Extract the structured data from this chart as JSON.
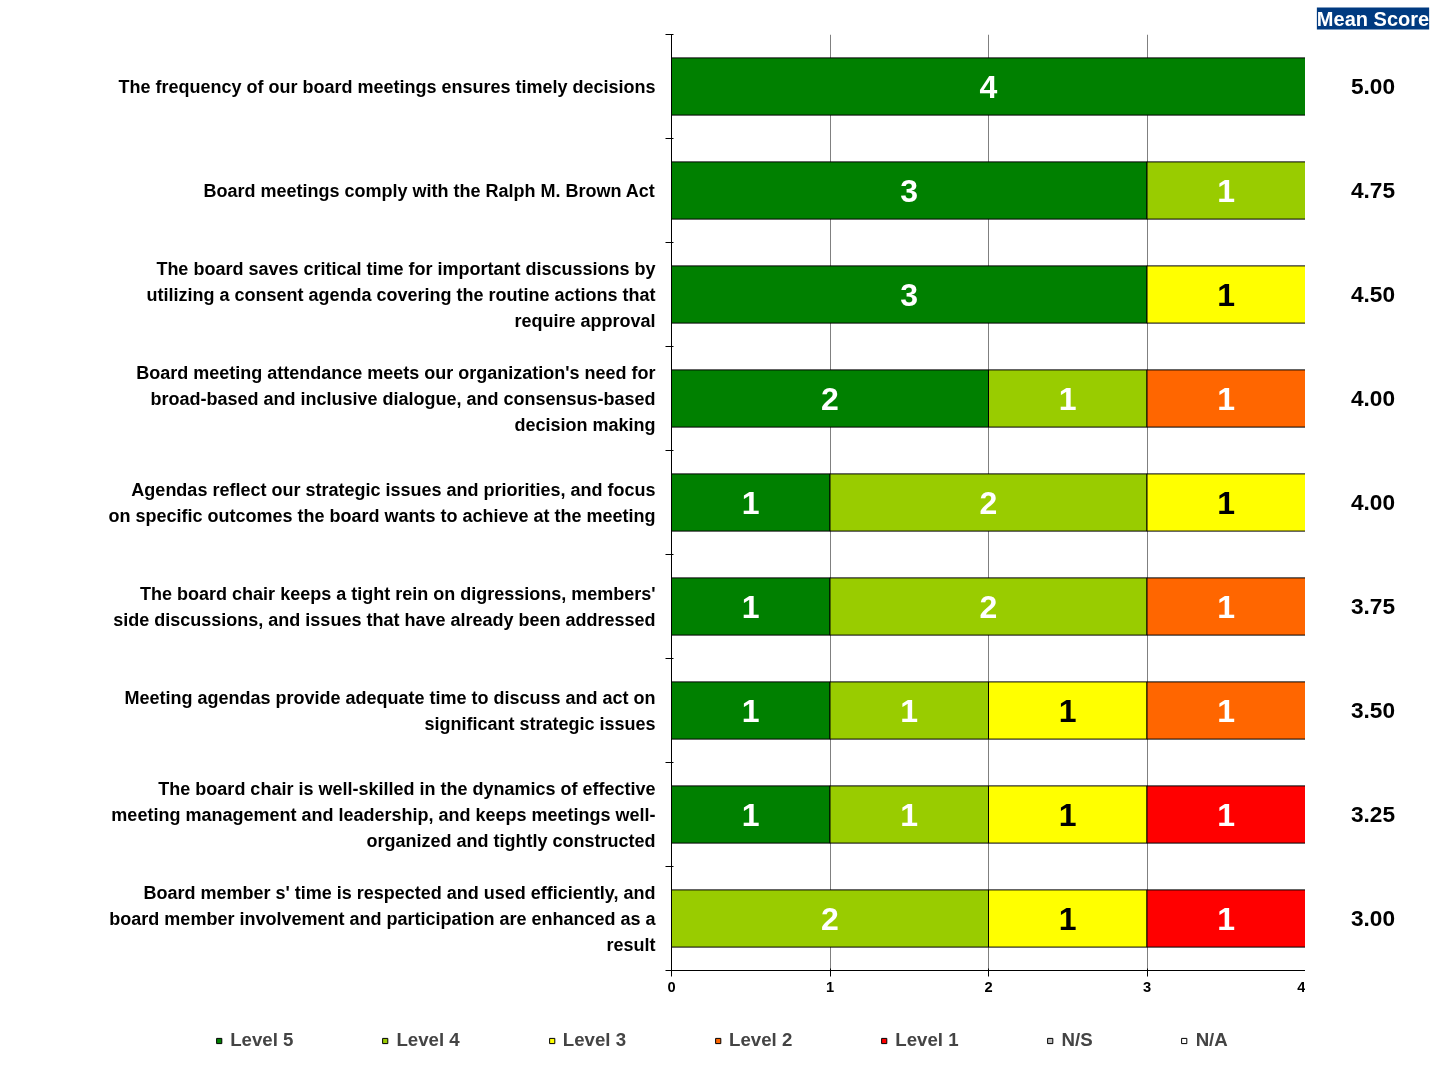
{
  "chart_data": {
    "type": "bar",
    "orientation": "horizontal",
    "stacked": true,
    "data_labels": true,
    "grid": "x",
    "legend": "bottom",
    "categories": [
      "The frequency of our board meetings ensures timely decisions",
      "Board meetings comply with the Ralph M. Brown Act",
      "The board saves critical time for important discussions by utilizing a consent agenda covering the routine actions that require approval",
      "Board meeting attendance meets our organization's need for broad-based and inclusive dialogue, and consensus-based decision making",
      "Agendas reflect our strategic issues and priorities, and focus on specific outcomes the board wants to achieve at the meeting",
      "The board chair keeps a tight rein on digressions, members' side discussions, and issues that have already been addressed",
      "Meeting agendas provide adequate time to discuss and act on significant strategic issues",
      "The board chair is well-skilled in the dynamics of effective meeting management and leadership, and keeps meetings well-organized and tightly constructed",
      "Board member s' time is respected and used efficiently, and board member involvement and participation are enhanced as a result"
    ],
    "series": [
      {
        "name": "Level 5",
        "color": "#008000",
        "values": [
          4,
          3,
          3,
          2,
          1,
          1,
          1,
          1,
          null
        ]
      },
      {
        "name": "Level 4",
        "color": "#99cc00",
        "values": [
          null,
          1,
          null,
          1,
          2,
          2,
          1,
          1,
          2
        ]
      },
      {
        "name": "Level 3",
        "color": "#ffff00",
        "values": [
          null,
          null,
          1,
          null,
          1,
          null,
          1,
          1,
          1
        ]
      },
      {
        "name": "Level 2",
        "color": "#ff6600",
        "values": [
          null,
          null,
          null,
          1,
          null,
          1,
          1,
          null,
          null
        ]
      },
      {
        "name": "Level 1",
        "color": "#ff0000",
        "values": [
          null,
          null,
          null,
          null,
          null,
          null,
          null,
          1,
          1
        ]
      },
      {
        "name": "N/S",
        "color": "#c0c0c0",
        "values": [
          null,
          null,
          null,
          null,
          null,
          null,
          null,
          null,
          null
        ]
      },
      {
        "name": "N/A",
        "color": "#ffffff",
        "values": [
          null,
          null,
          null,
          null,
          null,
          null,
          null,
          null,
          null
        ]
      }
    ],
    "xlim": [
      0,
      4
    ],
    "xticks": [
      0,
      1,
      2,
      3,
      4
    ],
    "annotations": [
      "Mean Score",
      "5.00",
      "4.75",
      "4.50",
      "4.00",
      "4.00",
      "3.75",
      "3.50",
      "3.25",
      "3.00"
    ]
  }
}
